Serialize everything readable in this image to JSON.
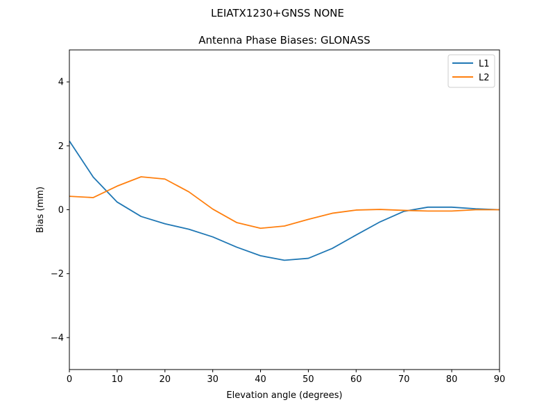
{
  "chart_data": {
    "type": "line",
    "suptitle": "LEIATX1230+GNSS NONE",
    "title": "Antenna Phase Biases: GLONASS",
    "xlabel": "Elevation angle (degrees)",
    "ylabel": "Bias (mm)",
    "xlim": [
      0,
      90
    ],
    "ylim": [
      -5,
      5
    ],
    "xticks": [
      0,
      10,
      20,
      30,
      40,
      50,
      60,
      70,
      80,
      90
    ],
    "yticks": [
      4,
      2,
      0,
      -2,
      -4
    ],
    "ytick_labels": [
      "4",
      "2",
      "0",
      "−2",
      "−4"
    ],
    "grid": false,
    "legend_position": "top-right",
    "x": [
      0,
      5,
      10,
      15,
      20,
      25,
      30,
      35,
      40,
      45,
      50,
      55,
      60,
      65,
      70,
      75,
      80,
      85,
      90
    ],
    "series": [
      {
        "name": "L1",
        "color": "#1f77b4",
        "values": [
          2.15,
          1.02,
          0.24,
          -0.21,
          -0.44,
          -0.61,
          -0.85,
          -1.17,
          -1.44,
          -1.58,
          -1.52,
          -1.21,
          -0.79,
          -0.38,
          -0.05,
          0.08,
          0.08,
          0.03,
          0.0
        ]
      },
      {
        "name": "L2",
        "color": "#ff7f0e",
        "values": [
          0.42,
          0.38,
          0.74,
          1.03,
          0.96,
          0.56,
          0.02,
          -0.4,
          -0.58,
          -0.51,
          -0.3,
          -0.11,
          -0.01,
          0.01,
          -0.02,
          -0.04,
          -0.04,
          0.0,
          0.0
        ]
      }
    ]
  }
}
